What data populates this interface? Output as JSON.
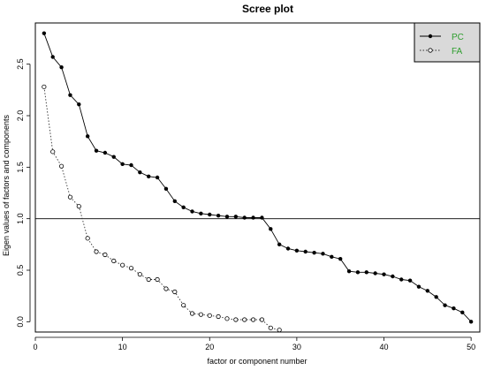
{
  "chart_data": {
    "type": "line",
    "title": "Scree plot",
    "xlabel": "factor or component number",
    "ylabel": "Eigen values of factors and components",
    "xlim": [
      0,
      51
    ],
    "ylim": [
      -0.1,
      2.9
    ],
    "x_ticks": [
      0,
      10,
      20,
      30,
      40,
      50
    ],
    "y_ticks": [
      0.0,
      0.5,
      1.0,
      1.5,
      2.0,
      2.5
    ],
    "x_tick_labels": [
      "0",
      "10",
      "20",
      "30",
      "40",
      "50"
    ],
    "y_tick_labels": [
      "0.0",
      "0.5",
      "1.0",
      "1.5",
      "2.0",
      "2.5"
    ],
    "reference_line_y": 1.0,
    "legend": {
      "position": "top-right",
      "background": "#d9d9d9",
      "text_color": "#2e9e2e"
    },
    "series": [
      {
        "name": "PC",
        "style": "solid",
        "marker": "filled-circle",
        "color": "#000000",
        "x": [
          1,
          2,
          3,
          4,
          5,
          6,
          7,
          8,
          9,
          10,
          11,
          12,
          13,
          14,
          15,
          16,
          17,
          18,
          19,
          20,
          21,
          22,
          23,
          24,
          25,
          26,
          27,
          28,
          29,
          30,
          31,
          32,
          33,
          34,
          35,
          36,
          37,
          38,
          39,
          40,
          41,
          42,
          43,
          44,
          45,
          46,
          47,
          48,
          49,
          50
        ],
        "values": [
          2.8,
          2.57,
          2.47,
          2.2,
          2.11,
          1.8,
          1.66,
          1.64,
          1.6,
          1.53,
          1.52,
          1.45,
          1.41,
          1.4,
          1.29,
          1.17,
          1.11,
          1.07,
          1.05,
          1.04,
          1.03,
          1.02,
          1.02,
          1.01,
          1.01,
          1.01,
          0.9,
          0.75,
          0.71,
          0.69,
          0.68,
          0.67,
          0.66,
          0.63,
          0.61,
          0.49,
          0.48,
          0.48,
          0.47,
          0.46,
          0.44,
          0.41,
          0.4,
          0.34,
          0.3,
          0.24,
          0.16,
          0.13,
          0.09,
          0.0
        ]
      },
      {
        "name": "FA",
        "style": "dotted",
        "marker": "open-circle",
        "color": "#333333",
        "x": [
          1,
          2,
          3,
          4,
          5,
          6,
          7,
          8,
          9,
          10,
          11,
          12,
          13,
          14,
          15,
          16,
          17,
          18,
          19,
          20,
          21,
          22,
          23,
          24,
          25,
          26,
          27,
          28
        ],
        "values": [
          2.28,
          1.65,
          1.51,
          1.21,
          1.12,
          0.81,
          0.68,
          0.65,
          0.59,
          0.55,
          0.52,
          0.46,
          0.41,
          0.41,
          0.32,
          0.29,
          0.16,
          0.08,
          0.07,
          0.06,
          0.05,
          0.03,
          0.02,
          0.02,
          0.02,
          0.02,
          -0.06,
          -0.08
        ]
      }
    ]
  }
}
